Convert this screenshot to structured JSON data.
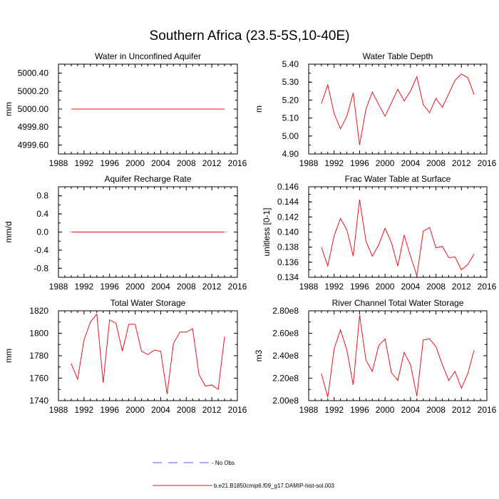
{
  "main_title": "Southern Africa (23.5-5S,10-40E)",
  "chart_data": [
    {
      "type": "line",
      "title": "Water in Unconfined Aquifer",
      "ylabel": "mm",
      "xlim": [
        1988,
        2016
      ],
      "ylim": [
        4999.5,
        5000.5
      ],
      "x_ticks": [
        "1988",
        "1992",
        "1996",
        "2000",
        "2004",
        "2008",
        "2012",
        "2016"
      ],
      "y_ticks": [
        "4999.60",
        "4999.80",
        "5000.00",
        "5000.20",
        "5000.40"
      ],
      "series": [
        {
          "x": [
            1990,
            1991,
            1992,
            1993,
            1994,
            1995,
            1996,
            1997,
            1998,
            1999,
            2000,
            2001,
            2002,
            2003,
            2004,
            2005,
            2006,
            2007,
            2008,
            2009,
            2010,
            2011,
            2012,
            2013,
            2014
          ],
          "values": [
            5000,
            5000,
            5000,
            5000,
            5000,
            5000,
            5000,
            5000,
            5000,
            5000,
            5000,
            5000,
            5000,
            5000,
            5000,
            5000,
            5000,
            5000,
            5000,
            5000,
            5000,
            5000,
            5000,
            5000,
            5000
          ],
          "color": "#e8141c"
        }
      ]
    },
    {
      "type": "line",
      "title": "Water Table Depth",
      "ylabel": "m",
      "xlim": [
        1988,
        2016
      ],
      "ylim": [
        4.9,
        5.4
      ],
      "x_ticks": [
        "1988",
        "1992",
        "1996",
        "2000",
        "2004",
        "2008",
        "2012",
        "2016"
      ],
      "y_ticks": [
        "4.90",
        "5.00",
        "5.10",
        "5.20",
        "5.30",
        "5.40"
      ],
      "series": [
        {
          "x": [
            1990,
            1991,
            1992,
            1993,
            1994,
            1995,
            1996,
            1997,
            1998,
            1999,
            2000,
            2001,
            2002,
            2003,
            2004,
            2005,
            2006,
            2007,
            2008,
            2009,
            2010,
            2011,
            2012,
            2013,
            2014
          ],
          "values": [
            5.18,
            5.285,
            5.125,
            5.04,
            5.11,
            5.24,
            4.95,
            5.15,
            5.245,
            5.175,
            5.11,
            5.185,
            5.26,
            5.195,
            5.25,
            5.33,
            5.175,
            5.13,
            5.21,
            5.16,
            5.235,
            5.31,
            5.345,
            5.325,
            5.23
          ],
          "color": "#e8141c"
        }
      ]
    },
    {
      "type": "line",
      "title": "Aquifer Recharge Rate",
      "ylabel": "mm/d",
      "xlim": [
        1988,
        2016
      ],
      "ylim": [
        -1,
        1
      ],
      "x_ticks": [
        "1988",
        "1992",
        "1996",
        "2000",
        "2004",
        "2008",
        "2012",
        "2016"
      ],
      "y_ticks": [
        "-0.8",
        "-0.4",
        "0.0",
        "0.4",
        "0.8"
      ],
      "series": [
        {
          "x": [
            1990,
            1991,
            1992,
            1993,
            1994,
            1995,
            1996,
            1997,
            1998,
            1999,
            2000,
            2001,
            2002,
            2003,
            2004,
            2005,
            2006,
            2007,
            2008,
            2009,
            2010,
            2011,
            2012,
            2013,
            2014
          ],
          "values": [
            0,
            0,
            0,
            0,
            0,
            0,
            0,
            0,
            0,
            0,
            0,
            0,
            0,
            0,
            0,
            0,
            0,
            0,
            0,
            0,
            0,
            0,
            0,
            0,
            0
          ],
          "color": "#e8141c"
        }
      ]
    },
    {
      "type": "line",
      "title": "Frac Water Table at Surface",
      "ylabel": "unitless [0-1]",
      "xlim": [
        1988,
        2016
      ],
      "ylim": [
        0.134,
        0.146
      ],
      "x_ticks": [
        "1988",
        "1992",
        "1996",
        "2000",
        "2004",
        "2008",
        "2012",
        "2016"
      ],
      "y_ticks": [
        "0.134",
        "0.136",
        "0.138",
        "0.140",
        "0.142",
        "0.144",
        "0.146"
      ],
      "series": [
        {
          "x": [
            1990,
            1991,
            1992,
            1993,
            1994,
            1995,
            1996,
            1997,
            1998,
            1999,
            2000,
            2001,
            2002,
            2003,
            2004,
            2005,
            2006,
            2007,
            2008,
            2009,
            2010,
            2011,
            2012,
            2013,
            2014
          ],
          "values": [
            0.138,
            0.1355,
            0.1395,
            0.1418,
            0.1403,
            0.1368,
            0.1443,
            0.1388,
            0.1368,
            0.1383,
            0.1405,
            0.1386,
            0.1355,
            0.1396,
            0.1368,
            0.1342,
            0.1401,
            0.1406,
            0.1379,
            0.1381,
            0.1366,
            0.1367,
            0.135,
            0.1357,
            0.1371
          ],
          "color": "#e8141c"
        }
      ]
    },
    {
      "type": "line",
      "title": "Total Water Storage",
      "ylabel": "mm",
      "xlim": [
        1988,
        2016
      ],
      "ylim": [
        1740,
        1820
      ],
      "x_ticks": [
        "1988",
        "1992",
        "1996",
        "2000",
        "2004",
        "2008",
        "2012",
        "2016"
      ],
      "y_ticks": [
        "1740",
        "1760",
        "1780",
        "1800",
        "1820"
      ],
      "series": [
        {
          "x": [
            1990,
            1991,
            1992,
            1993,
            1994,
            1995,
            1996,
            1997,
            1998,
            1999,
            2000,
            2001,
            2002,
            2003,
            2004,
            2005,
            2006,
            2007,
            2008,
            2009,
            2010,
            2011,
            2012,
            2013,
            2014
          ],
          "values": [
            1773,
            1759,
            1794,
            1810,
            1817,
            1756,
            1812,
            1809,
            1784,
            1808,
            1808,
            1784,
            1781,
            1785,
            1784,
            1746,
            1791,
            1801,
            1801,
            1804,
            1763,
            1753,
            1754,
            1750,
            1797
          ],
          "color": "#e8141c"
        }
      ]
    },
    {
      "type": "line",
      "title": "River Channel Total Water Storage",
      "ylabel": "m3",
      "xlim": [
        1988,
        2016
      ],
      "ylim": [
        200000000,
        280000000
      ],
      "x_ticks": [
        "1988",
        "1992",
        "1996",
        "2000",
        "2004",
        "2008",
        "2012",
        "2016"
      ],
      "y_ticks": [
        "2.00e8",
        "2.20e8",
        "2.40e8",
        "2.60e8",
        "2.80e8"
      ],
      "series": [
        {
          "x": [
            1990,
            1991,
            1992,
            1993,
            1994,
            1995,
            1996,
            1997,
            1998,
            1999,
            2000,
            2001,
            2002,
            2003,
            2004,
            2005,
            2006,
            2007,
            2008,
            2009,
            2010,
            2011,
            2012,
            2013,
            2014
          ],
          "values": [
            224000000,
            203000000,
            246000000,
            263000000,
            245000000,
            214000000,
            276000000,
            236000000,
            226000000,
            249000000,
            255000000,
            225000000,
            218000000,
            243000000,
            232000000,
            204000000,
            254000000,
            255000000,
            248000000,
            232000000,
            218000000,
            226000000,
            211000000,
            224000000,
            245000000
          ],
          "color": "#e8141c"
        }
      ]
    }
  ],
  "legend": [
    {
      "label": "- No Obs",
      "color": "#5a5ad8",
      "style": "dashed"
    },
    {
      "label": "b.e21.B1850cmip6.f09_g17.DAMIP-hist-sol.003",
      "color": "#e8141c",
      "style": "solid"
    }
  ]
}
